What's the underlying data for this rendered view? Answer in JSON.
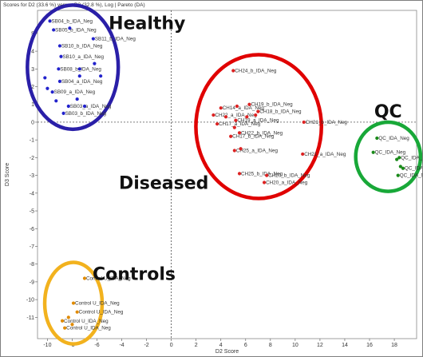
{
  "title": "Scores for D2 (33.6 %) versus D3 (32.8 %), Log | Pareto (DA)",
  "chart_data": {
    "type": "scatter",
    "xlabel": "D2 Score",
    "ylabel": "D3 Score",
    "xlim": [
      -10.8,
      19.8
    ],
    "ylim": [
      -12.2,
      6.3
    ],
    "xticks": [
      -10,
      -8,
      -6,
      -4,
      -2,
      0,
      2,
      4,
      6,
      8,
      10,
      12,
      14,
      16,
      18
    ],
    "yticks": [
      5,
      4,
      3,
      2,
      1,
      0,
      -1,
      -2,
      -3,
      -4,
      -5,
      -6,
      -7,
      -8,
      -9,
      -10,
      -11
    ],
    "grid": false,
    "groups": [
      {
        "name": "Healthy",
        "color": "#2222cc",
        "ring": "#2a1fa8",
        "points": [
          {
            "x": -9.8,
            "y": 5.7,
            "label": "SB04_b_IDA_Neg"
          },
          {
            "x": -9.5,
            "y": 5.2,
            "label": "SB05_b_IDA_Neg"
          },
          {
            "x": -6.3,
            "y": 4.7,
            "label": "SB11_b_IDA_Neg"
          },
          {
            "x": -9.0,
            "y": 4.3,
            "label": "SB10_b_IDA_Neg"
          },
          {
            "x": -8.9,
            "y": 3.7,
            "label": "SB10_a_IDA_Neg"
          },
          {
            "x": -9.1,
            "y": 3.0,
            "label": "SB08_b_IDA_Neg"
          },
          {
            "x": -9.0,
            "y": 2.3,
            "label": "SB04_a_IDA_Neg"
          },
          {
            "x": -9.6,
            "y": 1.7,
            "label": "SB09_a_IDA_Neg"
          },
          {
            "x": -8.3,
            "y": 0.9,
            "label": "SB03_a_IDA_Neg"
          },
          {
            "x": -8.7,
            "y": 0.5,
            "label": "SB03_b_IDA_Neg"
          },
          {
            "x": -10.2,
            "y": 2.5,
            "label": ""
          },
          {
            "x": -10.0,
            "y": 1.9,
            "label": ""
          },
          {
            "x": -7.4,
            "y": 3.0,
            "label": ""
          },
          {
            "x": -6.2,
            "y": 3.3,
            "label": ""
          },
          {
            "x": -5.7,
            "y": 2.6,
            "label": ""
          },
          {
            "x": -7.4,
            "y": 2.6,
            "label": ""
          },
          {
            "x": -7.6,
            "y": 1.3,
            "label": ""
          },
          {
            "x": -7.0,
            "y": 0.9,
            "label": ""
          },
          {
            "x": -9.3,
            "y": 1.2,
            "label": ""
          },
          {
            "x": -8.2,
            "y": 5.3,
            "label": ""
          }
        ]
      },
      {
        "name": "Diseased",
        "color": "#dd2222",
        "ring": "#e00000",
        "points": [
          {
            "x": 5.0,
            "y": 2.9,
            "label": "CH24_b_IDA_Neg"
          },
          {
            "x": 6.3,
            "y": 1.0,
            "label": "CH19_b_IDA_Neg"
          },
          {
            "x": 4.0,
            "y": 0.8,
            "label": "CH14_a_IDA_Neg"
          },
          {
            "x": 7.0,
            "y": 0.6,
            "label": "CH18_b_IDA_Neg"
          },
          {
            "x": 3.4,
            "y": 0.4,
            "label": "CH22_a_IDA_Neg"
          },
          {
            "x": 5.2,
            "y": 0.1,
            "label": "CH19_a_IDA_Neg"
          },
          {
            "x": 3.7,
            "y": -0.1,
            "label": "CH17_a_IDA_Neg"
          },
          {
            "x": 10.7,
            "y": 0.0,
            "label": "CH21_b_IDA_Neg"
          },
          {
            "x": 5.5,
            "y": -0.6,
            "label": "CH22_b_IDA_Neg"
          },
          {
            "x": 4.8,
            "y": -0.8,
            "label": "CH17_b_IDA_Neg"
          },
          {
            "x": 5.1,
            "y": -1.6,
            "label": "CH25_a_IDA_Neg"
          },
          {
            "x": 10.6,
            "y": -1.8,
            "label": "CH21_a_IDA_Neg"
          },
          {
            "x": 5.5,
            "y": -2.9,
            "label": "CH25_b_IDA_Neg"
          },
          {
            "x": 7.7,
            "y": -3.0,
            "label": "CH20_b_IDA_Neg"
          },
          {
            "x": 7.5,
            "y": -3.4,
            "label": "CH20_a_IDA_Neg"
          },
          {
            "x": 5.3,
            "y": 0.9,
            "label": ""
          },
          {
            "x": 6.1,
            "y": 0.3,
            "label": ""
          },
          {
            "x": 5.1,
            "y": -0.3,
            "label": ""
          },
          {
            "x": 6.8,
            "y": 0.4,
            "label": ""
          },
          {
            "x": 4.4,
            "y": 0.3,
            "label": ""
          },
          {
            "x": 5.6,
            "y": -1.5,
            "label": ""
          }
        ]
      },
      {
        "name": "QC",
        "color": "#1a8a1a",
        "ring": "#18a838",
        "points": [
          {
            "x": 16.6,
            "y": -0.9,
            "label": "QC_IDA_Neg"
          },
          {
            "x": 16.3,
            "y": -1.7,
            "label": "QC_IDA_Neg"
          },
          {
            "x": 18.4,
            "y": -2.0,
            "label": "QC_IDA_Neg"
          },
          {
            "x": 18.7,
            "y": -2.6,
            "label": "QC_IDA_Neg"
          },
          {
            "x": 18.3,
            "y": -3.0,
            "label": "QC_IDA_Neg"
          },
          {
            "x": 18.2,
            "y": -2.1,
            "label": ""
          },
          {
            "x": 18.5,
            "y": -2.5,
            "label": ""
          }
        ]
      },
      {
        "name": "Controls",
        "color": "#e08a00",
        "ring": "#f2b21e",
        "points": [
          {
            "x": -7.0,
            "y": -8.8,
            "label": "Control U_IDA_Neg"
          },
          {
            "x": -7.9,
            "y": -10.2,
            "label": "Control U_IDA_Neg"
          },
          {
            "x": -7.6,
            "y": -10.7,
            "label": "Control U_IDA_Neg"
          },
          {
            "x": -8.8,
            "y": -11.2,
            "label": "Control U_IDA_Neg"
          },
          {
            "x": -8.6,
            "y": -11.6,
            "label": "Control U_IDA_Neg"
          },
          {
            "x": -8.3,
            "y": -11.0,
            "label": ""
          },
          {
            "x": -8.0,
            "y": -11.4,
            "label": ""
          }
        ]
      }
    ]
  }
}
